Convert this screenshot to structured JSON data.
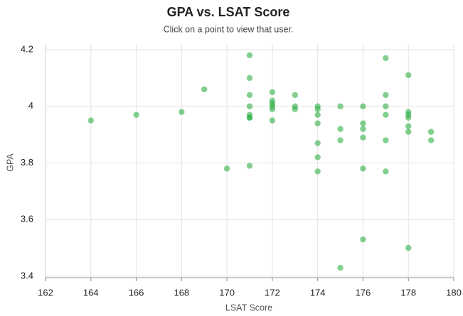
{
  "chart_data": {
    "type": "scatter",
    "title": "GPA vs. LSAT Score",
    "subtitle": "Click on a point to view that user.",
    "x_label": "LSAT Score",
    "y_label": "GPA",
    "color": "#2eaf45",
    "grid": true,
    "xlim": [
      162,
      180
    ],
    "ylim": [
      3.395,
      4.22
    ],
    "xticks": [
      162,
      164,
      166,
      168,
      170,
      172,
      174,
      176,
      178,
      180
    ],
    "yticks": [
      {
        "value": 3.4,
        "label": "3.4"
      },
      {
        "value": 3.6,
        "label": "3.6"
      },
      {
        "value": 3.8,
        "label": "3.8"
      },
      {
        "value": 4.0,
        "label": "4"
      },
      {
        "value": 4.2,
        "label": "4.2"
      }
    ],
    "x": [
      164,
      166,
      168,
      169,
      170,
      171,
      171,
      171,
      171,
      171,
      171,
      171,
      171,
      172,
      172,
      172,
      172,
      172,
      172,
      173,
      173,
      173,
      174,
      174,
      174,
      174,
      174,
      174,
      174,
      175,
      175,
      175,
      175,
      176,
      176,
      176,
      176,
      176,
      176,
      177,
      177,
      177,
      177,
      177,
      177,
      178,
      178,
      178,
      178,
      178,
      178,
      178,
      179,
      179
    ],
    "values": [
      3.95,
      3.97,
      3.98,
      4.06,
      3.78,
      4.18,
      4.1,
      4.04,
      4.0,
      3.97,
      3.96,
      3.96,
      3.79,
      4.05,
      4.02,
      4.01,
      4.0,
      3.99,
      3.95,
      4.04,
      4.0,
      3.99,
      4.0,
      3.99,
      3.97,
      3.94,
      3.87,
      3.82,
      3.77,
      4.0,
      3.92,
      3.88,
      3.43,
      4.0,
      3.94,
      3.92,
      3.89,
      3.78,
      3.53,
      4.17,
      4.04,
      4.0,
      3.97,
      3.88,
      3.77,
      4.11,
      3.98,
      3.97,
      3.96,
      3.93,
      3.91,
      3.5,
      3.91,
      3.88
    ]
  }
}
